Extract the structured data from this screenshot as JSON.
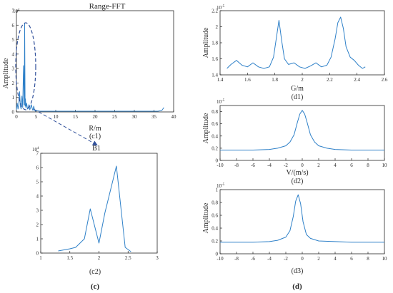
{
  "figure_labels": {
    "c": "(c)",
    "d": "(d)"
  },
  "colors": {
    "line": "#2e80c8",
    "axis": "#262626",
    "annotation": "#2f4f9a"
  },
  "chart_data": [
    {
      "id": "c1",
      "type": "line",
      "title": "Range-FFT",
      "caption": "(c1)",
      "xlabel": "R/m",
      "ylabel": "Amplitude",
      "exponent": "10",
      "exp_power": "4",
      "xlim": [
        0,
        40
      ],
      "ylim": [
        0,
        7
      ],
      "xticks": [
        0,
        5,
        10,
        15,
        20,
        25,
        30,
        35,
        40
      ],
      "yticks": [
        0,
        1,
        2,
        3,
        4,
        5,
        6,
        7
      ],
      "x": [
        0,
        0.2,
        0.4,
        0.6,
        0.8,
        1.0,
        1.2,
        1.4,
        1.6,
        1.8,
        2.0,
        2.1,
        2.2,
        2.3,
        2.4,
        2.6,
        2.8,
        3.0,
        3.2,
        3.4,
        3.6,
        3.8,
        4.0,
        4.2,
        4.4,
        4.6,
        4.8,
        5.0,
        6,
        8,
        10,
        15,
        20,
        25,
        30,
        35,
        36,
        37,
        37.5
      ],
      "y": [
        0.15,
        0.6,
        0.2,
        0.5,
        1.4,
        0.4,
        0.2,
        1.1,
        0.3,
        3.2,
        0.5,
        6.1,
        0.4,
        0.9,
        0.3,
        0.6,
        0.2,
        0.3,
        0.5,
        0.15,
        0.3,
        0.5,
        0.25,
        0.1,
        0.4,
        0.15,
        0.05,
        0.1,
        0.05,
        0.05,
        0.05,
        0.05,
        0.05,
        0.05,
        0.05,
        0.05,
        0.05,
        0.1,
        0.3
      ],
      "grid": false
    },
    {
      "id": "c2",
      "type": "line",
      "title": "B1",
      "caption": "(c2)",
      "xlabel": "",
      "ylabel": "",
      "exponent": "10",
      "exp_power": "4",
      "xlim": [
        1,
        3
      ],
      "ylim": [
        0,
        7
      ],
      "xticks": [
        1,
        1.5,
        2,
        2.5,
        3
      ],
      "yticks": [
        0,
        1,
        2,
        3,
        4,
        5,
        6,
        7
      ],
      "x": [
        1.3,
        1.5,
        1.6,
        1.75,
        1.85,
        2.0,
        2.1,
        2.3,
        2.45,
        2.55
      ],
      "y": [
        0.15,
        0.3,
        0.4,
        1.0,
        3.1,
        0.7,
        2.8,
        6.1,
        0.4,
        0.1
      ],
      "grid": false
    },
    {
      "id": "d1",
      "type": "line",
      "title": "",
      "caption": "(d1)",
      "xlabel": "G/m",
      "ylabel": "Amplitude",
      "exponent": "10",
      "exp_power": "-5",
      "xlim": [
        1.4,
        2.6
      ],
      "ylim": [
        1.4,
        2.2
      ],
      "xticks": [
        1.4,
        1.6,
        1.8,
        2,
        2.2,
        2.4,
        2.6
      ],
      "yticks": [
        1.4,
        1.6,
        1.8,
        2,
        2.2
      ],
      "x": [
        1.45,
        1.48,
        1.52,
        1.56,
        1.6,
        1.64,
        1.68,
        1.72,
        1.76,
        1.79,
        1.81,
        1.83,
        1.85,
        1.87,
        1.9,
        1.94,
        1.98,
        2.02,
        2.06,
        2.1,
        2.14,
        2.18,
        2.21,
        2.24,
        2.26,
        2.28,
        2.3,
        2.32,
        2.35,
        2.38,
        2.41,
        2.44,
        2.46
      ],
      "y": [
        1.48,
        1.53,
        1.58,
        1.52,
        1.5,
        1.55,
        1.5,
        1.48,
        1.5,
        1.62,
        1.85,
        2.08,
        1.82,
        1.6,
        1.53,
        1.55,
        1.5,
        1.48,
        1.51,
        1.55,
        1.5,
        1.52,
        1.62,
        1.85,
        2.05,
        2.12,
        1.98,
        1.75,
        1.62,
        1.58,
        1.52,
        1.48,
        1.5
      ],
      "grid": false
    },
    {
      "id": "d2",
      "type": "line",
      "title": "",
      "caption": "(d2)",
      "xlabel": "V/(m/s)",
      "ylabel": "Amplitude",
      "exponent": "10",
      "exp_power": "-5",
      "xlim": [
        -10,
        10
      ],
      "ylim": [
        0,
        0.9
      ],
      "xticks": [
        -10,
        -8,
        -6,
        -4,
        -2,
        0,
        2,
        4,
        6,
        8,
        10
      ],
      "yticks": [
        0,
        0.2,
        0.4,
        0.6,
        0.8
      ],
      "x": [
        -10,
        -8,
        -6,
        -4,
        -3,
        -2,
        -1.5,
        -1,
        -0.6,
        -0.3,
        0,
        0.3,
        0.6,
        1,
        1.5,
        2,
        3,
        4,
        6,
        8,
        10
      ],
      "y": [
        0.17,
        0.17,
        0.17,
        0.18,
        0.2,
        0.24,
        0.3,
        0.42,
        0.62,
        0.76,
        0.82,
        0.76,
        0.62,
        0.42,
        0.3,
        0.24,
        0.2,
        0.18,
        0.17,
        0.17,
        0.17
      ],
      "grid": false
    },
    {
      "id": "d3",
      "type": "line",
      "title": "",
      "caption": "(d3)",
      "xlabel": "",
      "ylabel": "Amplitude",
      "exponent": "10",
      "exp_power": "-5",
      "xlim": [
        -10,
        10
      ],
      "ylim": [
        0,
        1
      ],
      "xticks": [
        -10,
        -8,
        -6,
        -4,
        -2,
        0,
        2,
        4,
        6,
        8,
        10
      ],
      "yticks": [
        0,
        0.2,
        0.4,
        0.6,
        0.8,
        1
      ],
      "x": [
        -10,
        -8,
        -6,
        -4,
        -3,
        -2,
        -1.5,
        -1.1,
        -0.8,
        -0.5,
        -0.2,
        0.1,
        0.5,
        1,
        2,
        4,
        6,
        8,
        10
      ],
      "y": [
        0.18,
        0.18,
        0.18,
        0.19,
        0.21,
        0.26,
        0.36,
        0.58,
        0.82,
        0.92,
        0.78,
        0.5,
        0.3,
        0.24,
        0.2,
        0.19,
        0.18,
        0.18,
        0.18
      ],
      "grid": false
    }
  ]
}
